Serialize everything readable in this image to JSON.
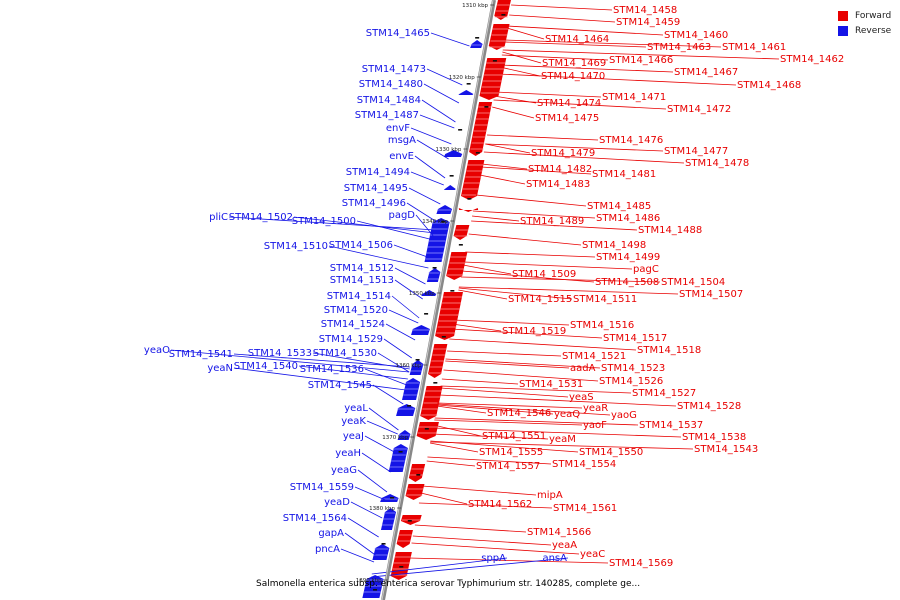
{
  "legend": {
    "forward": {
      "label": "Forward",
      "color": "#e80000"
    },
    "reverse": {
      "label": "Reverse",
      "color": "#1414e6"
    }
  },
  "caption": "Salmonella enterica subsp. enterica serovar Typhimurium str. 14028S, complete ge...",
  "ruler": [
    "1310 kbp",
    "1320 kbp",
    "1330 kbp",
    "1340 kbp",
    "1350 kbp",
    "1360 kbp",
    "1370 kbp",
    "1380 kbp",
    "1390 kbp"
  ],
  "forward_genes": [
    "STM14_1458",
    "STM14_1459",
    "STM14_1460",
    "STM14_1464",
    "STM14_1463",
    "STM14_1461",
    "STM14_1462",
    "STM14_1469",
    "STM14_1466",
    "STM14_1467",
    "STM14_1470",
    "STM14_1468",
    "STM14_1471",
    "STM14_1474",
    "STM14_1472",
    "STM14_1475",
    "STM14_1476",
    "STM14_1477",
    "STM14_1479",
    "STM14_1478",
    "STM14_1482",
    "STM14_1481",
    "STM14_1483",
    "STM14_1485",
    "STM14_1489",
    "STM14_1486",
    "STM14_1488",
    "STM14_1498",
    "STM14_1499",
    "pagC",
    "STM14_1509",
    "STM14_1508",
    "STM14_1504",
    "STM14_1507",
    "STM14_1515",
    "STM14_1511",
    "STM14_1516",
    "STM14_1519",
    "STM14_1517",
    "STM14_1518",
    "STM14_1521",
    "aadA",
    "STM14_1523",
    "STM14_1526",
    "STM14_1531",
    "STM14_1527",
    "yeaS",
    "STM14_1528",
    "yeaR",
    "STM14_1546",
    "yeaQ",
    "yaoG",
    "yaoF",
    "STM14_1537",
    "STM14_1538",
    "STM14_1551",
    "yeaM",
    "STM14_1543",
    "STM14_1555",
    "STM14_1550",
    "STM14_1557",
    "STM14_1554",
    "mipA",
    "STM14_1562",
    "STM14_1561",
    "STM14_1566",
    "yeaA",
    "yeaC",
    "STM14_1569"
  ],
  "reverse_genes": [
    "STM14_1465",
    "STM14_1473",
    "STM14_1480",
    "STM14_1484",
    "STM14_1487",
    "envF",
    "msgA",
    "envE",
    "STM14_1494",
    "STM14_1495",
    "STM14_1496",
    "pagD",
    "pliC",
    "STM14_1502",
    "STM14_1500",
    "STM14_1510",
    "STM14_1506",
    "STM14_1512",
    "STM14_1513",
    "STM14_1514",
    "STM14_1520",
    "STM14_1524",
    "STM14_1529",
    "yeaO",
    "STM14_1541",
    "STM14_1533",
    "STM14_1530",
    "yeaN",
    "STM14_1540",
    "STM14_1536",
    "STM14_1545",
    "yeaL",
    "yeaK",
    "yeaJ",
    "yeaH",
    "yeaG",
    "STM14_1559",
    "yeaD",
    "STM14_1564",
    "gapA",
    "pncA",
    "sppA",
    "ansA"
  ]
}
